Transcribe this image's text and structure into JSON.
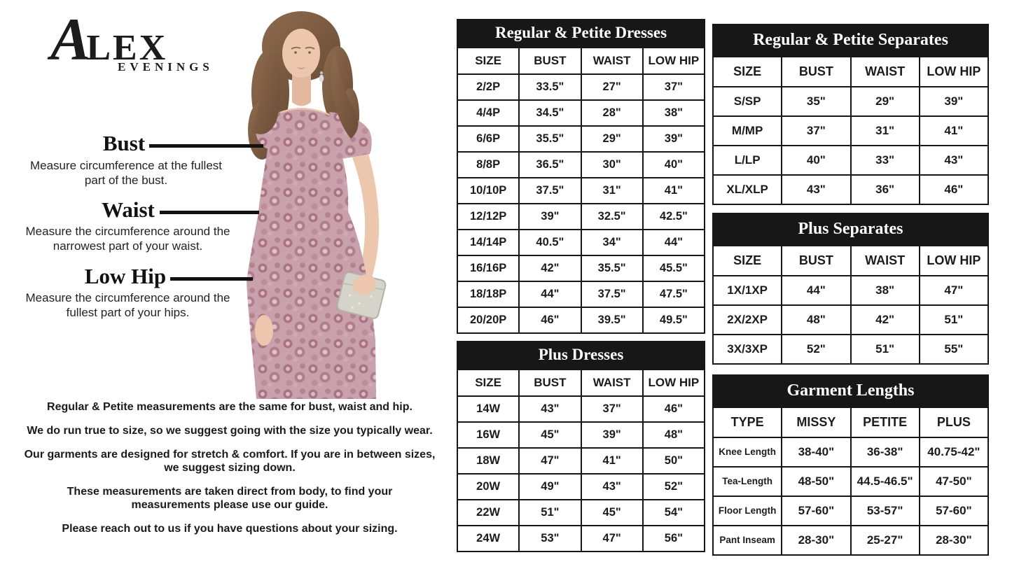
{
  "logo": {
    "alex_initial": "A",
    "alex_rest": "LEX",
    "evenings": "EVENINGS"
  },
  "model_image": {
    "alt": "Model wearing a mauve pink rosette lace short-sleeve A-line dress, holding a silver clutch",
    "dress_color": "#c9a1ac",
    "rosette_color": "#a97381",
    "hair_color": "#7d5c41",
    "skin_color": "#ecc6ad",
    "clutch_color": "#d6d3cb"
  },
  "measurement_guide": [
    {
      "label": "Bust",
      "description": "Measure circumference at the fullest part of the bust."
    },
    {
      "label": "Waist",
      "description": "Measure the circumference around the narrowest part of your waist."
    },
    {
      "label": "Low Hip",
      "description": "Measure the circumference around the fullest part of your hips."
    }
  ],
  "notes": [
    "Regular & Petite measurements are the same for bust, waist and hip.",
    "We do run true to size, so we suggest going with the size you typically wear.",
    "Our garments are designed for stretch & comfort. If you are in between sizes, we suggest sizing down.",
    "These measurements are taken direct from body, to find your measurements please use our guide.",
    "Please reach out to us if you have questions about your sizing."
  ],
  "tables": {
    "regular_petite_dresses": {
      "title": "Regular & Petite Dresses",
      "columns": [
        "SIZE",
        "BUST",
        "WAIST",
        "LOW HIP"
      ],
      "rows": [
        [
          "2/2P",
          "33.5\"",
          "27\"",
          "37\""
        ],
        [
          "4/4P",
          "34.5\"",
          "28\"",
          "38\""
        ],
        [
          "6/6P",
          "35.5\"",
          "29\"",
          "39\""
        ],
        [
          "8/8P",
          "36.5\"",
          "30\"",
          "40\""
        ],
        [
          "10/10P",
          "37.5\"",
          "31\"",
          "41\""
        ],
        [
          "12/12P",
          "39\"",
          "32.5\"",
          "42.5\""
        ],
        [
          "14/14P",
          "40.5\"",
          "34\"",
          "44\""
        ],
        [
          "16/16P",
          "42\"",
          "35.5\"",
          "45.5\""
        ],
        [
          "18/18P",
          "44\"",
          "37.5\"",
          "47.5\""
        ],
        [
          "20/20P",
          "46\"",
          "39.5\"",
          "49.5\""
        ]
      ]
    },
    "plus_dresses": {
      "title": "Plus Dresses",
      "columns": [
        "SIZE",
        "BUST",
        "WAIST",
        "LOW HIP"
      ],
      "rows": [
        [
          "14W",
          "43\"",
          "37\"",
          "46\""
        ],
        [
          "16W",
          "45\"",
          "39\"",
          "48\""
        ],
        [
          "18W",
          "47\"",
          "41\"",
          "50\""
        ],
        [
          "20W",
          "49\"",
          "43\"",
          "52\""
        ],
        [
          "22W",
          "51\"",
          "45\"",
          "54\""
        ],
        [
          "24W",
          "53\"",
          "47\"",
          "56\""
        ]
      ]
    },
    "regular_petite_separates": {
      "title": "Regular & Petite Separates",
      "columns": [
        "SIZE",
        "BUST",
        "WAIST",
        "LOW HIP"
      ],
      "rows": [
        [
          "S/SP",
          "35\"",
          "29\"",
          "39\""
        ],
        [
          "M/MP",
          "37\"",
          "31\"",
          "41\""
        ],
        [
          "L/LP",
          "40\"",
          "33\"",
          "43\""
        ],
        [
          "XL/XLP",
          "43\"",
          "36\"",
          "46\""
        ]
      ]
    },
    "plus_separates": {
      "title": "Plus Separates",
      "columns": [
        "SIZE",
        "BUST",
        "WAIST",
        "LOW HIP"
      ],
      "rows": [
        [
          "1X/1XP",
          "44\"",
          "38\"",
          "47\""
        ],
        [
          "2X/2XP",
          "48\"",
          "42\"",
          "51\""
        ],
        [
          "3X/3XP",
          "52\"",
          "51\"",
          "55\""
        ]
      ]
    },
    "garment_lengths": {
      "title": "Garment Lengths",
      "columns": [
        "TYPE",
        "MISSY",
        "PETITE",
        "PLUS"
      ],
      "rows": [
        [
          "Knee Length",
          "38-40\"",
          "36-38\"",
          "40.75-42\""
        ],
        [
          "Tea-Length",
          "48-50\"",
          "44.5-46.5\"",
          "47-50\""
        ],
        [
          "Floor Length",
          "57-60\"",
          "53-57\"",
          "57-60\""
        ],
        [
          "Pant Inseam",
          "28-30\"",
          "25-27\"",
          "28-30\""
        ]
      ]
    }
  }
}
